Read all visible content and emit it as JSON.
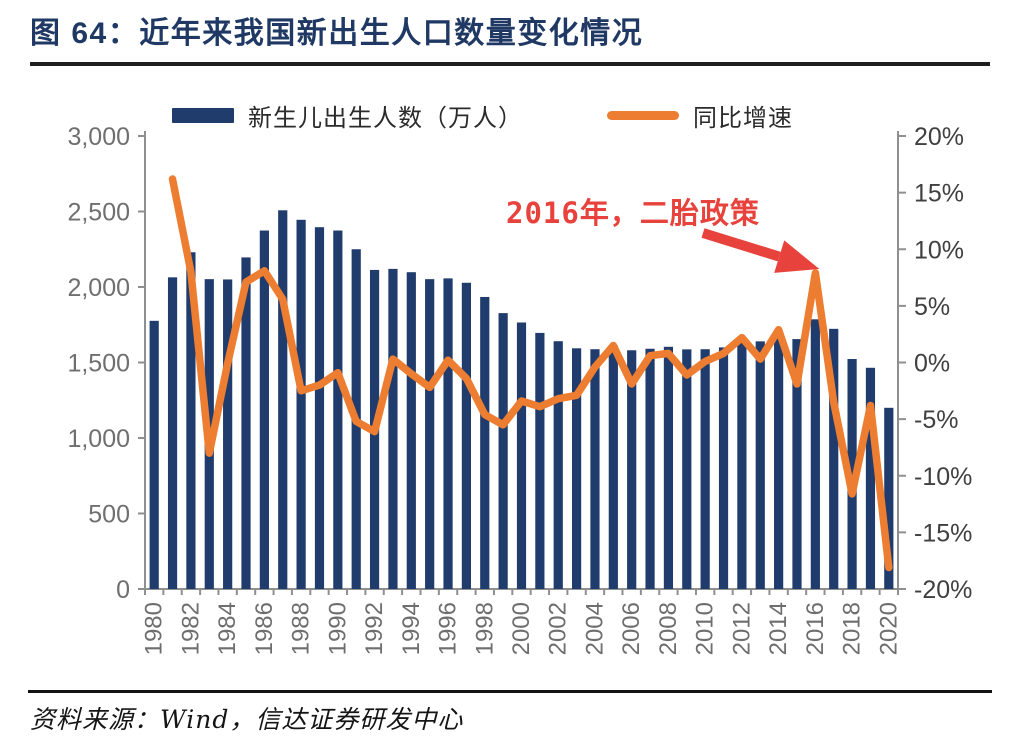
{
  "figure": {
    "title": "图 64：近年来我国新出生人口数量变化情况",
    "annotation": "2016年，二胎政策",
    "source": "资料来源：Wind，信达证券研发中心"
  },
  "legend": {
    "births": "新生儿出生人数（万人）",
    "growth": "同比增速"
  },
  "colors": {
    "bar": "#1f3c6d",
    "line": "#ed7d31",
    "annotation_red": "#e8423c",
    "title_navy": "#1f3864",
    "axis_line": "#8f8f8f",
    "left_tick_text": "#6f6f6f",
    "right_tick_text": "#404040",
    "x_tick_text": "#6e6e6e"
  },
  "chart_data": {
    "type": "bar",
    "title": "近年来我国新出生人口数量变化情况",
    "grid": false,
    "legend_position": "top",
    "categories": [
      1980,
      1981,
      1982,
      1983,
      1984,
      1985,
      1986,
      1987,
      1988,
      1989,
      1990,
      1991,
      1992,
      1993,
      1994,
      1995,
      1996,
      1997,
      1998,
      1999,
      2000,
      2001,
      2002,
      2003,
      2004,
      2005,
      2006,
      2007,
      2008,
      2009,
      2010,
      2011,
      2012,
      2013,
      2014,
      2015,
      2016,
      2017,
      2018,
      2019,
      2020
    ],
    "series": [
      {
        "name": "新生儿出生人数（万人）",
        "type": "bar",
        "axis": "left",
        "color": "#1f3c6d",
        "values": [
          1776,
          2064,
          2230,
          2052,
          2050,
          2196,
          2374,
          2508,
          2445,
          2396,
          2374,
          2250,
          2113,
          2120,
          2098,
          2052,
          2057,
          2028,
          1934,
          1827,
          1765,
          1696,
          1641,
          1594,
          1588,
          1612,
          1581,
          1591,
          1604,
          1587,
          1588,
          1600,
          1635,
          1640,
          1687,
          1655,
          1786,
          1723,
          1523,
          1465,
          1200
        ]
      },
      {
        "name": "同比增速",
        "type": "line",
        "axis": "right",
        "color": "#ed7d31",
        "values": [
          null,
          16.2,
          8.0,
          -8.0,
          -0.1,
          7.1,
          8.1,
          5.6,
          -2.5,
          -2.0,
          -0.9,
          -5.2,
          -6.1,
          0.3,
          -1.0,
          -2.2,
          0.2,
          -1.4,
          -4.6,
          -5.5,
          -3.4,
          -3.9,
          -3.2,
          -2.9,
          -0.4,
          1.5,
          -1.9,
          0.6,
          0.8,
          -1.1,
          0.1,
          0.8,
          2.2,
          0.3,
          2.9,
          -1.9,
          7.9,
          -3.5,
          -11.6,
          -3.8,
          -18.1
        ]
      }
    ],
    "left_axis": {
      "min": 0,
      "max": 3000,
      "step": 500,
      "tick_labels": [
        "3,000",
        "2,500",
        "2,000",
        "1,500",
        "1,000",
        "500",
        "0"
      ]
    },
    "right_axis": {
      "min": -20,
      "max": 20,
      "step": 5,
      "tick_labels": [
        "20%",
        "15%",
        "10%",
        "5%",
        "0%",
        "-5%",
        "-10%",
        "-15%",
        "-20%"
      ]
    },
    "x_tick_labels": [
      "1980",
      "1982",
      "1984",
      "1986",
      "1988",
      "1990",
      "1992",
      "1994",
      "1996",
      "1998",
      "2000",
      "2002",
      "2004",
      "2006",
      "2008",
      "2010",
      "2012",
      "2014",
      "2016",
      "2018",
      "2020"
    ],
    "annotation": {
      "text": "2016年，二胎政策",
      "points_to_year": 2016,
      "pointed_value_pct": 7.9
    }
  }
}
